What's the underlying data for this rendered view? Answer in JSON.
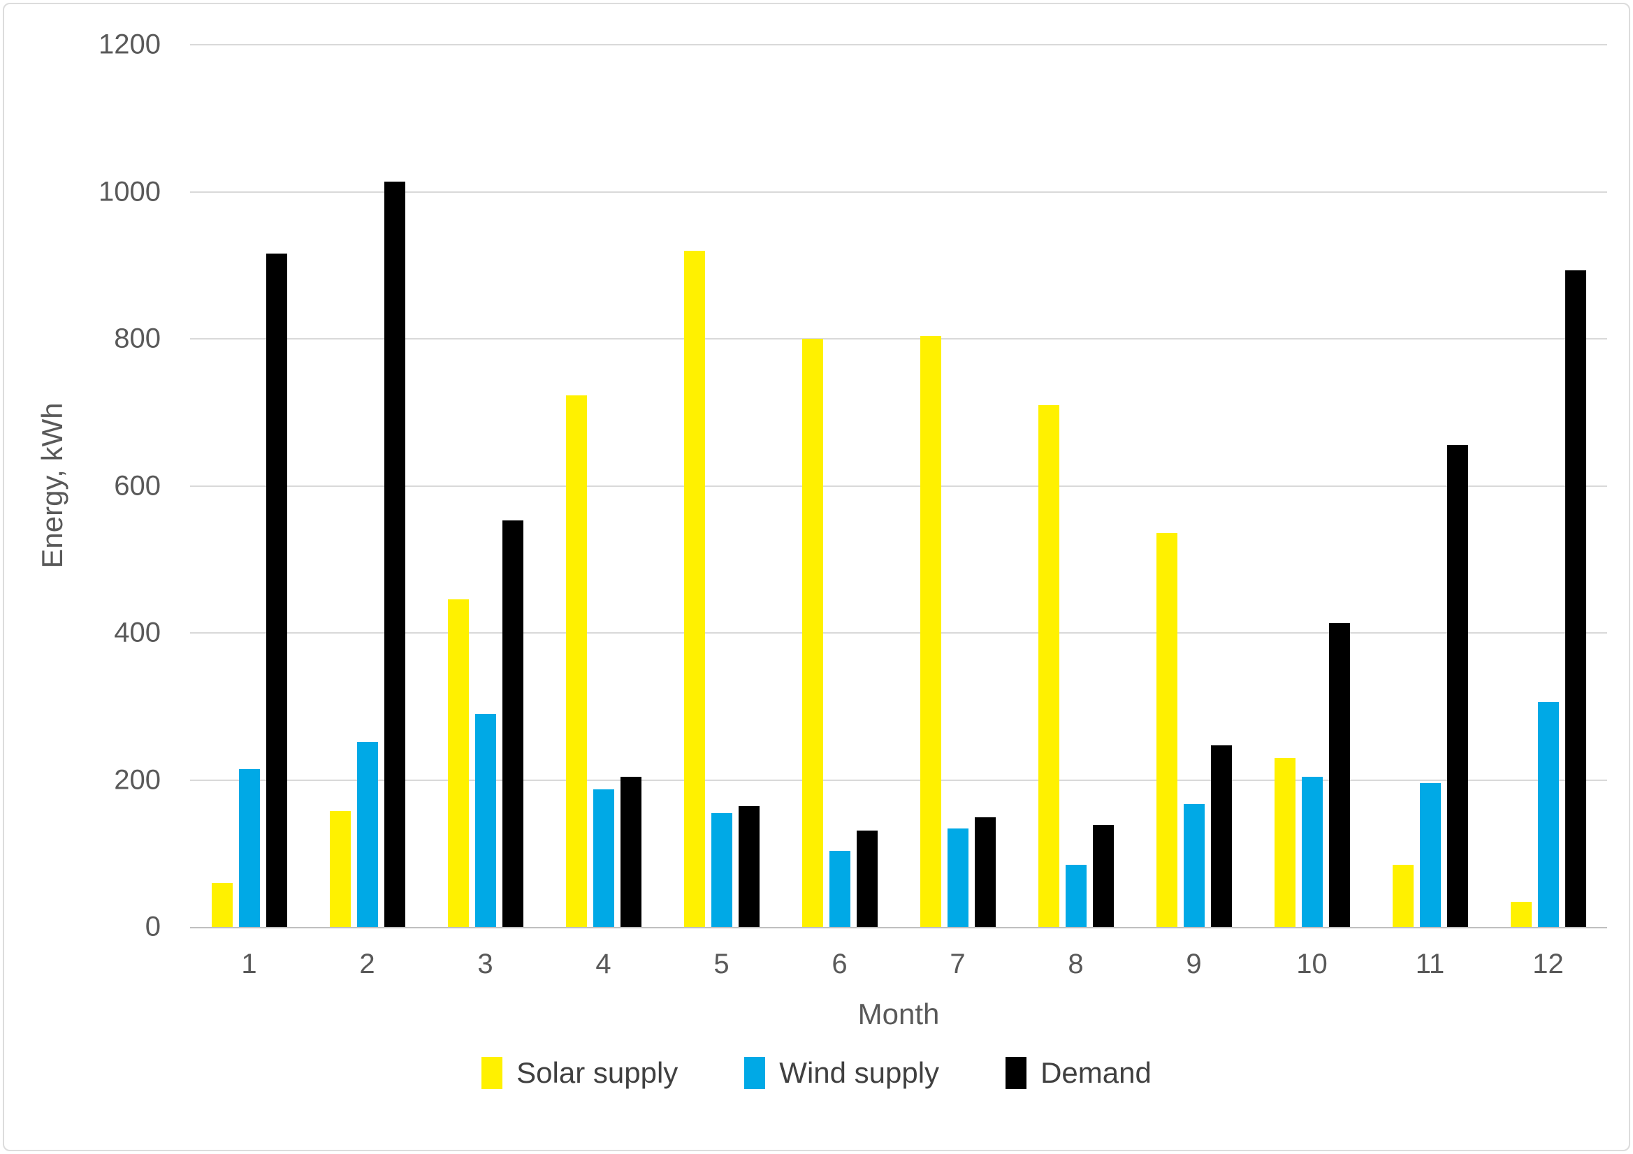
{
  "chart_data": {
    "type": "bar",
    "title": "",
    "xlabel": "Month",
    "ylabel": "Energy, kWh",
    "ylim": [
      0,
      1200
    ],
    "yticks": [
      0,
      200,
      400,
      600,
      800,
      1000,
      1200
    ],
    "grid": true,
    "legend_position": "bottom-center",
    "categories": [
      "1",
      "2",
      "3",
      "4",
      "5",
      "6",
      "7",
      "8",
      "9",
      "10",
      "11",
      "12"
    ],
    "series": [
      {
        "name": "Solar supply",
        "color": "#FFF100",
        "values": [
          60,
          158,
          446,
          723,
          920,
          800,
          804,
          710,
          536,
          230,
          85,
          34
        ]
      },
      {
        "name": "Wind supply",
        "color": "#00A9E6",
        "values": [
          215,
          252,
          290,
          187,
          155,
          104,
          134,
          85,
          167,
          204,
          196,
          306
        ]
      },
      {
        "name": "Demand",
        "color": "#000000",
        "values": [
          916,
          1014,
          553,
          204,
          164,
          131,
          149,
          139,
          247,
          413,
          656,
          893
        ]
      }
    ]
  },
  "colors": {
    "gridline": "#D9D9D9",
    "axis_line": "#BFBFBF",
    "tick_text": "#595959",
    "legend_text": "#404040",
    "background": "#FFFFFF",
    "frame_border": "#DCDCDC"
  }
}
